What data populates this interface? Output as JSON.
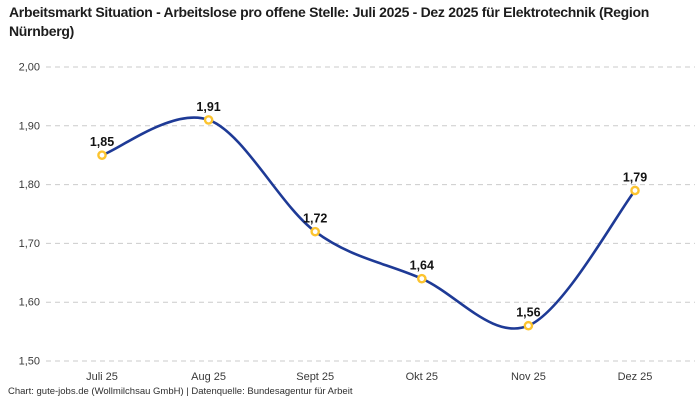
{
  "title": "Arbeitsmarkt Situation - Arbeitslose pro offene Stelle: Juli 2025 - Dez 2025 für Elektrotechnik (Region Nürnberg)",
  "footer": "Chart: gute-jobs.de (Wollmilchsau GmbH) | Datenquelle: Bundesagentur für Arbeit",
  "colors": {
    "background": "#ffffff",
    "title_text": "#1d1d1d",
    "tick_text": "#3a3a3a",
    "data_label_text": "#131313",
    "footer_text": "#2e2e2e",
    "line": "#1e3a96",
    "marker_ring": "#fcc42f",
    "marker_fill": "#ffffff",
    "gridline": "#cbcbcb"
  },
  "chart_data": {
    "type": "line",
    "title": "Arbeitsmarkt Situation - Arbeitslose pro offene Stelle: Juli 2025 - Dez 2025 für Elektrotechnik (Region Nürnberg)",
    "categories": [
      "Juli 25",
      "Aug 25",
      "Sept 25",
      "Okt 25",
      "Nov 25",
      "Dez 25"
    ],
    "values": [
      1.85,
      1.91,
      1.72,
      1.64,
      1.56,
      1.79
    ],
    "value_labels": [
      "1,85",
      "1,91",
      "1,72",
      "1,64",
      "1,56",
      "1,79"
    ],
    "xlabel": "",
    "ylabel": "",
    "ylim": [
      1.5,
      2.0
    ],
    "y_ticks": [
      {
        "value": 2.0,
        "label": "2,00"
      },
      {
        "value": 1.9,
        "label": "1,90"
      },
      {
        "value": 1.8,
        "label": "1,80"
      },
      {
        "value": 1.7,
        "label": "1,70"
      },
      {
        "value": 1.6,
        "label": "1,60"
      },
      {
        "value": 1.5,
        "label": "1,50"
      }
    ],
    "grid": "horizontal-dashed",
    "legend": "none",
    "smooth": true,
    "decimal_separator": ","
  }
}
